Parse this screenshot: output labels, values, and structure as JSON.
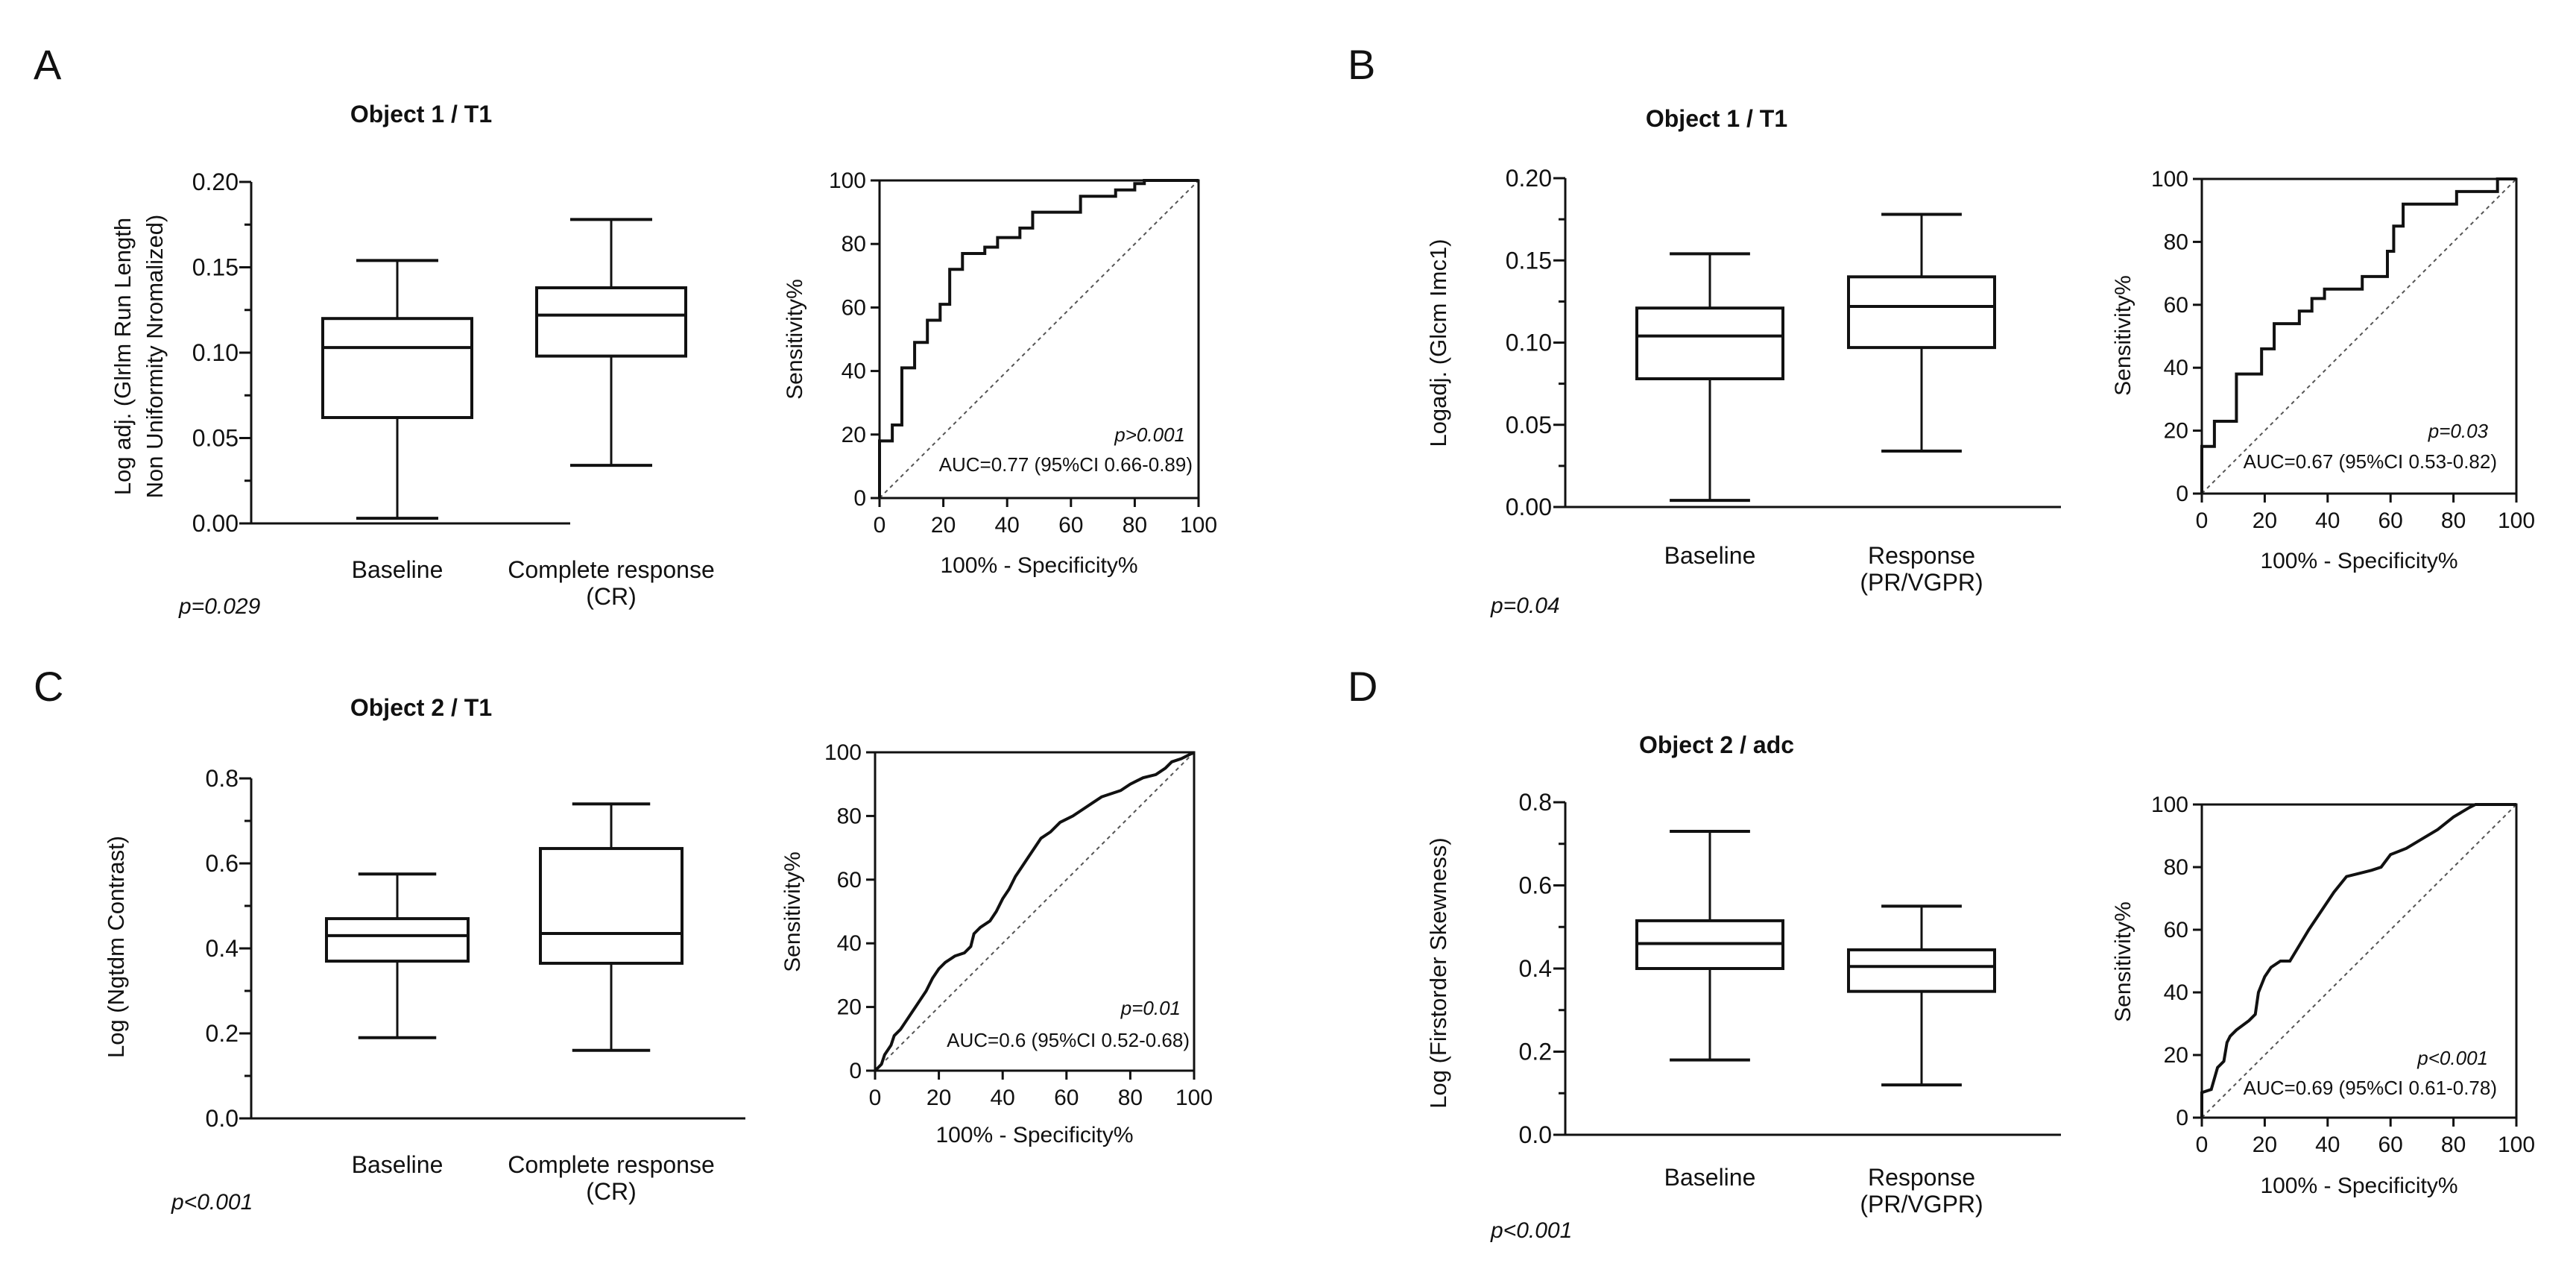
{
  "panels": [
    {
      "letter": "A",
      "title": "Object 1 / T1",
      "pvalue": "p=0.029",
      "chart_data": [
        {
          "type": "boxplot",
          "ylabel_lines": [
            "Log adj. (Glrlm Run Length",
            "Non Uniformity Nromalized)"
          ],
          "ylim": [
            0,
            0.2
          ],
          "yticks": [
            "0.00",
            "0.05",
            "0.10",
            "0.15",
            "0.20"
          ],
          "yticks_values": [
            0,
            0.05,
            0.1,
            0.15,
            0.2
          ],
          "categories": [
            [
              "Baseline"
            ],
            [
              "Complete response",
              "(CR)"
            ]
          ],
          "boxes": [
            {
              "min": 0.003,
              "q1": 0.062,
              "median": 0.103,
              "q3": 0.12,
              "max": 0.154
            },
            {
              "min": 0.034,
              "q1": 0.098,
              "median": 0.122,
              "q3": 0.138,
              "max": 0.178
            }
          ]
        },
        {
          "type": "roc",
          "xlabel": "100% - Specificity%",
          "ylabel": "Sensitivity%",
          "ticks": [
            "0",
            "20",
            "40",
            "60",
            "80",
            "100"
          ],
          "tick_values": [
            0,
            20,
            40,
            60,
            80,
            100
          ],
          "p_text": "p>0.001",
          "auc_text": "AUC=0.77  (95%CI 0.66-0.89)",
          "curve": [
            [
              0,
              0
            ],
            [
              0,
              18
            ],
            [
              4,
              18
            ],
            [
              4,
              23
            ],
            [
              7,
              23
            ],
            [
              7,
              41
            ],
            [
              11,
              41
            ],
            [
              11,
              49
            ],
            [
              15,
              49
            ],
            [
              15,
              56
            ],
            [
              19,
              56
            ],
            [
              19,
              61
            ],
            [
              22,
              61
            ],
            [
              22,
              72
            ],
            [
              26,
              72
            ],
            [
              26,
              77
            ],
            [
              33,
              77
            ],
            [
              33,
              79
            ],
            [
              37,
              79
            ],
            [
              37,
              82
            ],
            [
              44,
              82
            ],
            [
              44,
              85
            ],
            [
              48,
              85
            ],
            [
              48,
              90
            ],
            [
              63,
              90
            ],
            [
              63,
              95
            ],
            [
              74,
              95
            ],
            [
              74,
              97
            ],
            [
              80,
              97
            ],
            [
              80,
              99
            ],
            [
              83,
              99
            ],
            [
              83,
              100
            ],
            [
              100,
              100
            ]
          ]
        }
      ]
    },
    {
      "letter": "B",
      "title": "Object 1 / T1",
      "pvalue": "p=0.04",
      "chart_data": [
        {
          "type": "boxplot",
          "ylabel_lines": [
            "Logadj. (Glcm Imc1)"
          ],
          "ylim": [
            0,
            0.2
          ],
          "yticks": [
            "0.00",
            "0.05",
            "0.10",
            "0.15",
            "0.20"
          ],
          "yticks_values": [
            0,
            0.05,
            0.1,
            0.15,
            0.2
          ],
          "categories": [
            [
              "Baseline"
            ],
            [
              "Response",
              "(PR/VGPR)"
            ]
          ],
          "boxes": [
            {
              "min": 0.004,
              "q1": 0.078,
              "median": 0.104,
              "q3": 0.121,
              "max": 0.154
            },
            {
              "min": 0.034,
              "q1": 0.097,
              "median": 0.122,
              "q3": 0.14,
              "max": 0.178
            }
          ]
        },
        {
          "type": "roc",
          "xlabel": "100% - Specificity%",
          "ylabel": "Sensitivity%",
          "ticks": [
            "0",
            "20",
            "40",
            "60",
            "80",
            "100"
          ],
          "tick_values": [
            0,
            20,
            40,
            60,
            80,
            100
          ],
          "p_text": "p=0.03",
          "auc_text": "AUC=0.67  (95%CI 0.53-0.82)",
          "curve": [
            [
              0,
              0
            ],
            [
              0,
              15
            ],
            [
              4,
              15
            ],
            [
              4,
              23
            ],
            [
              11,
              23
            ],
            [
              11,
              38
            ],
            [
              19,
              38
            ],
            [
              19,
              46
            ],
            [
              23,
              46
            ],
            [
              23,
              54
            ],
            [
              31,
              54
            ],
            [
              31,
              58
            ],
            [
              35,
              58
            ],
            [
              35,
              62
            ],
            [
              39,
              62
            ],
            [
              39,
              65
            ],
            [
              51,
              65
            ],
            [
              51,
              69
            ],
            [
              59,
              69
            ],
            [
              59,
              77
            ],
            [
              61,
              77
            ],
            [
              61,
              85
            ],
            [
              64,
              85
            ],
            [
              64,
              92
            ],
            [
              81,
              92
            ],
            [
              81,
              96
            ],
            [
              94,
              96
            ],
            [
              94,
              100
            ],
            [
              100,
              100
            ]
          ]
        }
      ]
    },
    {
      "letter": "C",
      "title": "Object 2 / T1",
      "pvalue": "p<0.001",
      "chart_data": [
        {
          "type": "boxplot",
          "ylabel_lines": [
            "Log (Ngtdm Contrast)"
          ],
          "ylim": [
            0,
            0.8
          ],
          "yticks": [
            "0.0",
            "0.2",
            "0.4",
            "0.6",
            "0.8"
          ],
          "yticks_values": [
            0,
            0.2,
            0.4,
            0.6,
            0.8
          ],
          "categories": [
            [
              "Baseline"
            ],
            [
              "Complete response",
              "(CR)"
            ]
          ],
          "boxes": [
            {
              "min": 0.19,
              "q1": 0.37,
              "median": 0.43,
              "q3": 0.47,
              "max": 0.575
            },
            {
              "min": 0.16,
              "q1": 0.365,
              "median": 0.435,
              "q3": 0.635,
              "max": 0.74
            }
          ]
        },
        {
          "type": "roc",
          "xlabel": "100% - Specificity%",
          "ylabel": "Sensitivity%",
          "ticks": [
            "0",
            "20",
            "40",
            "60",
            "80",
            "100"
          ],
          "tick_values": [
            0,
            20,
            40,
            60,
            80,
            100
          ],
          "p_text": "p=0.01",
          "auc_text": "AUC=0.6  (95%CI 0.52-0.68)",
          "curve": [
            [
              0,
              0
            ],
            [
              2,
              2
            ],
            [
              3,
              5
            ],
            [
              5,
              8
            ],
            [
              6,
              11
            ],
            [
              8,
              13
            ],
            [
              10,
              16
            ],
            [
              12,
              19
            ],
            [
              14,
              22
            ],
            [
              16,
              25
            ],
            [
              18,
              29
            ],
            [
              20,
              32
            ],
            [
              22,
              34
            ],
            [
              25,
              36
            ],
            [
              28,
              37
            ],
            [
              30,
              39
            ],
            [
              31,
              43
            ],
            [
              33,
              45
            ],
            [
              36,
              47
            ],
            [
              38,
              50
            ],
            [
              40,
              54
            ],
            [
              42,
              57
            ],
            [
              44,
              61
            ],
            [
              46,
              64
            ],
            [
              48,
              67
            ],
            [
              50,
              70
            ],
            [
              52,
              73
            ],
            [
              55,
              75
            ],
            [
              58,
              78
            ],
            [
              62,
              80
            ],
            [
              65,
              82
            ],
            [
              68,
              84
            ],
            [
              71,
              86
            ],
            [
              74,
              87
            ],
            [
              77,
              88
            ],
            [
              80,
              90
            ],
            [
              84,
              92
            ],
            [
              88,
              93
            ],
            [
              91,
              95
            ],
            [
              93,
              97
            ],
            [
              96,
              98
            ],
            [
              98,
              99
            ],
            [
              100,
              100
            ]
          ]
        }
      ]
    },
    {
      "letter": "D",
      "title": "Object 2 / adc",
      "pvalue": "p<0.001",
      "chart_data": [
        {
          "type": "boxplot",
          "ylabel_lines": [
            "Log (Firstorder Skewness)"
          ],
          "ylim": [
            0,
            0.8
          ],
          "yticks": [
            "0.0",
            "0.2",
            "0.4",
            "0.6",
            "0.8"
          ],
          "yticks_values": [
            0,
            0.2,
            0.4,
            0.6,
            0.8
          ],
          "categories": [
            [
              "Baseline"
            ],
            [
              "Response",
              "(PR/VGPR)"
            ]
          ],
          "boxes": [
            {
              "min": 0.18,
              "q1": 0.4,
              "median": 0.46,
              "q3": 0.515,
              "max": 0.73
            },
            {
              "min": 0.12,
              "q1": 0.345,
              "median": 0.405,
              "q3": 0.445,
              "max": 0.55
            }
          ]
        },
        {
          "type": "roc",
          "xlabel": "100% - Specificity%",
          "ylabel": "Sensitivity%",
          "ticks": [
            "0",
            "20",
            "40",
            "60",
            "80",
            "100"
          ],
          "tick_values": [
            0,
            20,
            40,
            60,
            80,
            100
          ],
          "p_text": "p<0.001",
          "auc_text": "AUC=0.69  (95%CI 0.61-0.78)",
          "curve": [
            [
              0,
              0
            ],
            [
              0,
              8
            ],
            [
              3,
              9
            ],
            [
              5,
              16
            ],
            [
              7,
              18
            ],
            [
              8,
              24
            ],
            [
              9,
              26
            ],
            [
              11,
              28
            ],
            [
              15,
              31
            ],
            [
              17,
              33
            ],
            [
              18,
              40
            ],
            [
              20,
              45
            ],
            [
              22,
              48
            ],
            [
              25,
              50
            ],
            [
              28,
              50
            ],
            [
              31,
              55
            ],
            [
              34,
              60
            ],
            [
              38,
              66
            ],
            [
              42,
              72
            ],
            [
              46,
              77
            ],
            [
              50,
              78
            ],
            [
              54,
              79
            ],
            [
              57,
              80
            ],
            [
              60,
              84
            ],
            [
              65,
              86
            ],
            [
              70,
              89
            ],
            [
              75,
              92
            ],
            [
              80,
              96
            ],
            [
              85,
              99
            ],
            [
              87,
              100
            ],
            [
              100,
              100
            ]
          ]
        }
      ]
    }
  ]
}
